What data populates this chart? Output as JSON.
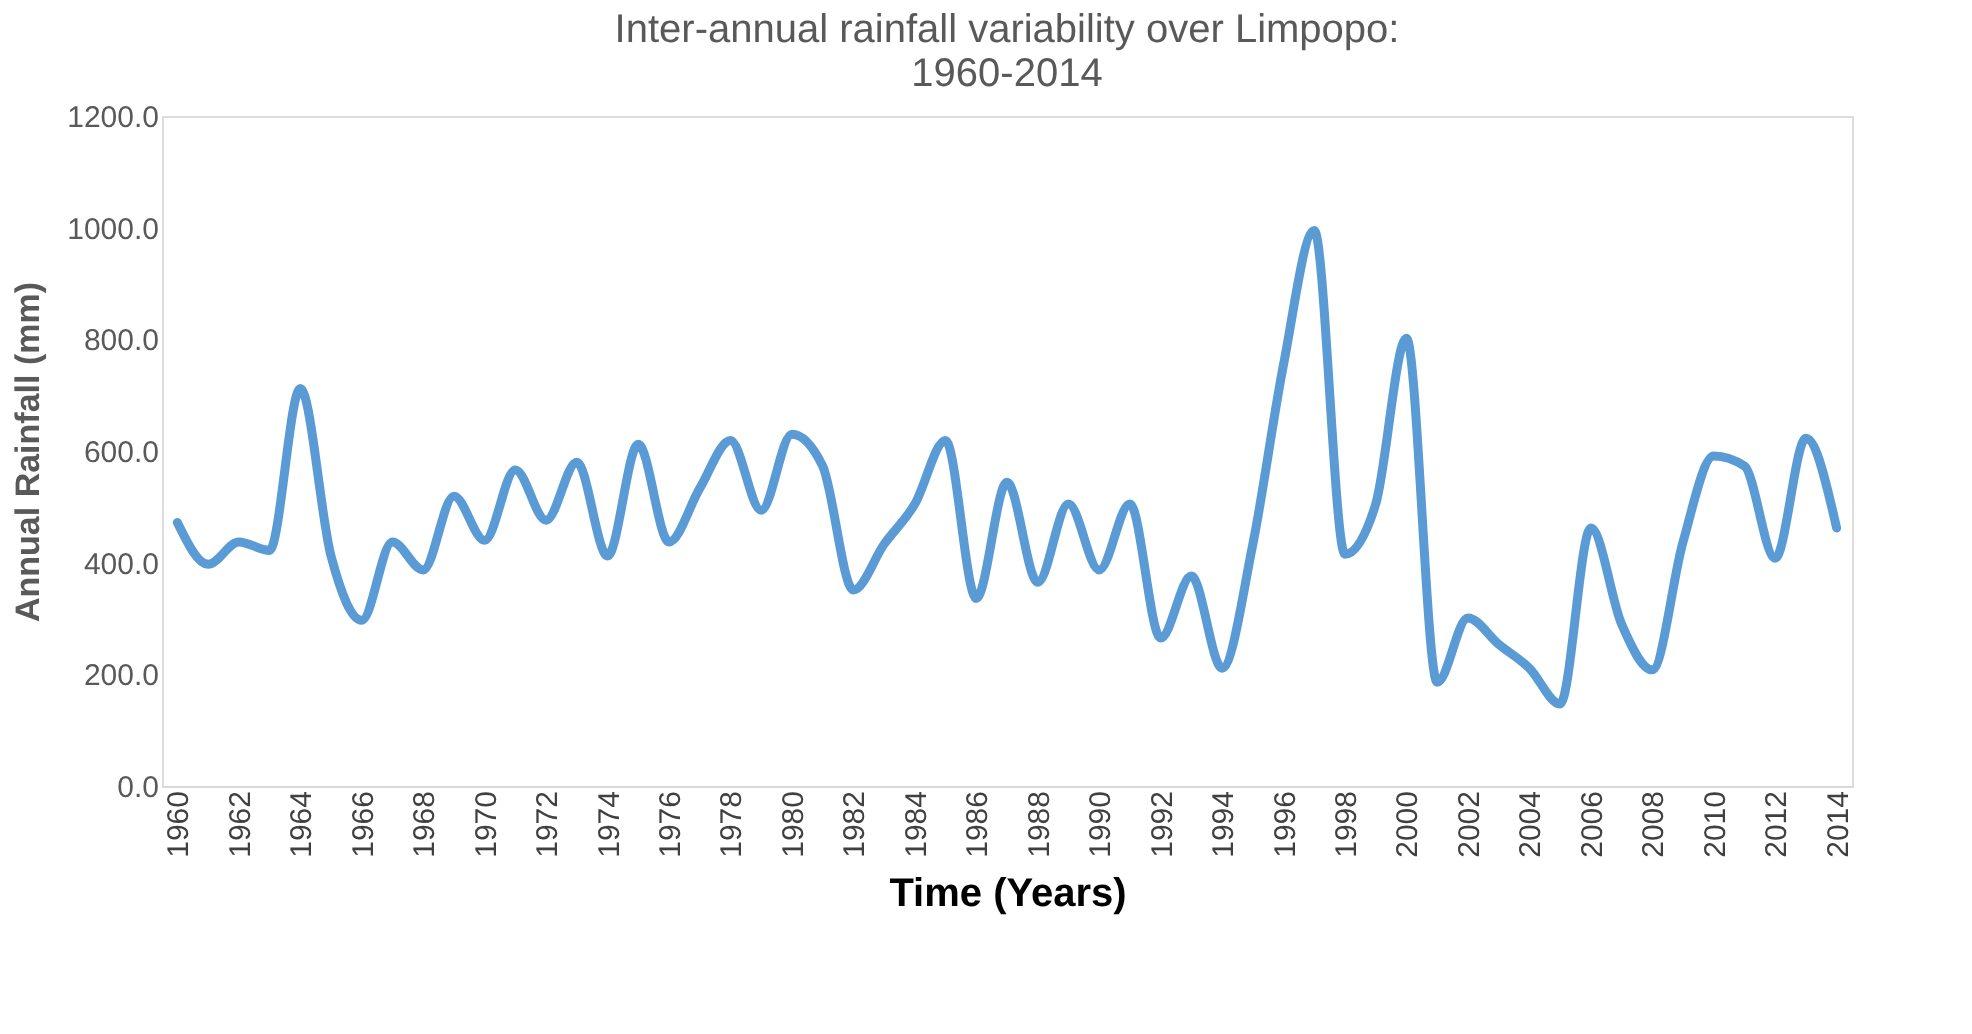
{
  "chart_data": {
    "type": "line",
    "title": [
      "Inter-annual rainfall variability over Limpopo:",
      "1960-2014"
    ],
    "xlabel": "Time (Years)",
    "ylabel": "Annual Rainfall (mm)",
    "categories": [
      "1960",
      null,
      "1962",
      null,
      "1964",
      null,
      "1966",
      null,
      "1968",
      null,
      "1970",
      null,
      "1972",
      null,
      "1974",
      null,
      "1976",
      null,
      "1978",
      null,
      "1980",
      null,
      "1982",
      null,
      "1984",
      null,
      "1986",
      null,
      "1988",
      null,
      "1990",
      null,
      "1992",
      null,
      "1994",
      null,
      "1996",
      null,
      "1998",
      null,
      "2000",
      null,
      "2002",
      null,
      "2004",
      null,
      "2006",
      null,
      "2008",
      null,
      "2010",
      null,
      "2012",
      null,
      "2014"
    ],
    "series": [
      {
        "color": "#5b9bd5",
        "values": [
          472,
          397,
          437,
          422,
          712,
          412,
          297,
          437,
          387,
          519,
          440,
          566,
          476,
          580,
          412,
          612,
          437,
          533,
          619,
          494,
          630,
          573,
          351,
          433,
          505,
          619,
          336,
          544,
          365,
          505,
          387,
          505,
          265,
          376,
          211,
          433,
          755,
          995,
          415,
          505,
          802,
          186,
          301,
          254,
          211,
          147,
          462,
          290,
          208,
          437,
          591,
          573,
          408,
          623,
          462
        ]
      }
    ],
    "ylim": [
      0,
      1200
    ],
    "yticks": [
      {
        "value": 0,
        "label": "0.0"
      },
      {
        "value": 200,
        "label": "200.0"
      },
      {
        "value": 400,
        "label": "400.0"
      },
      {
        "value": 600,
        "label": "600.0"
      },
      {
        "value": 800,
        "label": "800.0"
      },
      {
        "value": 1000,
        "label": "1000.0"
      },
      {
        "value": 1200,
        "label": "1200.0"
      }
    ],
    "grid": false,
    "marker": "none",
    "line_style": "solid"
  }
}
